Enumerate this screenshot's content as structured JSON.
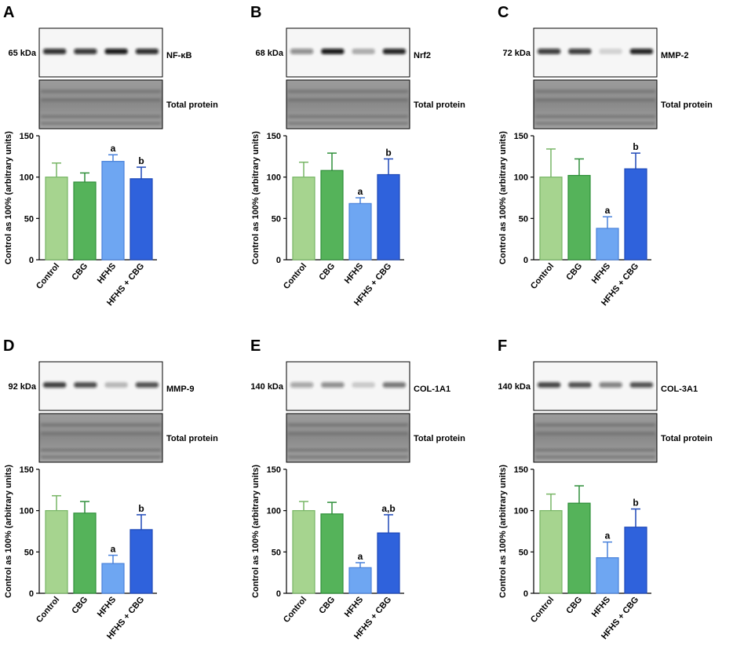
{
  "figure": {
    "categories": [
      "Control",
      "CBG",
      "HFHS",
      "HFHS + CBG"
    ],
    "ylabel": "Control as 100% (arbitrary units)",
    "ylim": [
      0,
      150
    ],
    "yticks": [
      "0",
      "50",
      "100",
      "150"
    ],
    "total_protein_label": "Total protein",
    "colors": [
      "#a6d48f",
      "#55b35a",
      "#6ea6f2",
      "#2f62dc"
    ],
    "edge_colors": [
      "#77b565",
      "#2f8f3a",
      "#4a82db",
      "#1f49b8"
    ]
  },
  "chart_data": [
    {
      "type": "bar",
      "panel": "A",
      "protein": "NF-κB",
      "kda": "65 kDa",
      "categories": [
        "Control",
        "CBG",
        "HFHS",
        "HFHS + CBG"
      ],
      "values": [
        100,
        94,
        119,
        98
      ],
      "errors": [
        17,
        11,
        8,
        14
      ],
      "sig": [
        "",
        "",
        "a",
        "b"
      ],
      "ylabel": "Control as 100% (arbitrary units)",
      "ylim": [
        0,
        150
      ]
    },
    {
      "type": "bar",
      "panel": "B",
      "protein": "Nrf2",
      "kda": "68 kDa",
      "categories": [
        "Control",
        "CBG",
        "HFHS",
        "HFHS + CBG"
      ],
      "values": [
        100,
        108,
        68,
        103
      ],
      "errors": [
        18,
        21,
        7,
        19
      ],
      "sig": [
        "",
        "",
        "a",
        "b"
      ],
      "ylabel": "Control as 100% (arbitrary units)",
      "ylim": [
        0,
        150
      ]
    },
    {
      "type": "bar",
      "panel": "C",
      "protein": "MMP-2",
      "kda": "72 kDa",
      "categories": [
        "Control",
        "CBG",
        "HFHS",
        "HFHS + CBG"
      ],
      "values": [
        100,
        102,
        38,
        110
      ],
      "errors": [
        34,
        20,
        14,
        19
      ],
      "sig": [
        "",
        "",
        "a",
        "b"
      ],
      "ylabel": "Control as 100% (arbitrary units)",
      "ylim": [
        0,
        150
      ]
    },
    {
      "type": "bar",
      "panel": "D",
      "protein": "MMP-9",
      "kda": "92 kDa",
      "categories": [
        "Control",
        "CBG",
        "HFHS",
        "HFHS + CBG"
      ],
      "values": [
        100,
        97,
        36,
        77
      ],
      "errors": [
        18,
        14,
        10,
        18
      ],
      "sig": [
        "",
        "",
        "a",
        "b"
      ],
      "ylabel": "Control as 100% (arbitrary units)",
      "ylim": [
        0,
        150
      ]
    },
    {
      "type": "bar",
      "panel": "E",
      "protein": "COL-1A1",
      "kda": "140 kDa",
      "categories": [
        "Control",
        "CBG",
        "HFHS",
        "HFHS + CBG"
      ],
      "values": [
        100,
        96,
        31,
        73
      ],
      "errors": [
        11,
        14,
        6,
        22
      ],
      "sig": [
        "",
        "",
        "a",
        "a,b"
      ],
      "ylabel": "Control as 100% (arbitrary units)",
      "ylim": [
        0,
        150
      ]
    },
    {
      "type": "bar",
      "panel": "F",
      "protein": "COL-3A1",
      "kda": "140 kDa",
      "categories": [
        "Control",
        "CBG",
        "HFHS",
        "HFHS + CBG"
      ],
      "values": [
        100,
        109,
        43,
        80
      ],
      "errors": [
        20,
        21,
        19,
        22
      ],
      "sig": [
        "",
        "",
        "a",
        "b"
      ],
      "ylabel": "Control as 100% (arbitrary units)",
      "ylim": [
        0,
        150
      ]
    }
  ]
}
